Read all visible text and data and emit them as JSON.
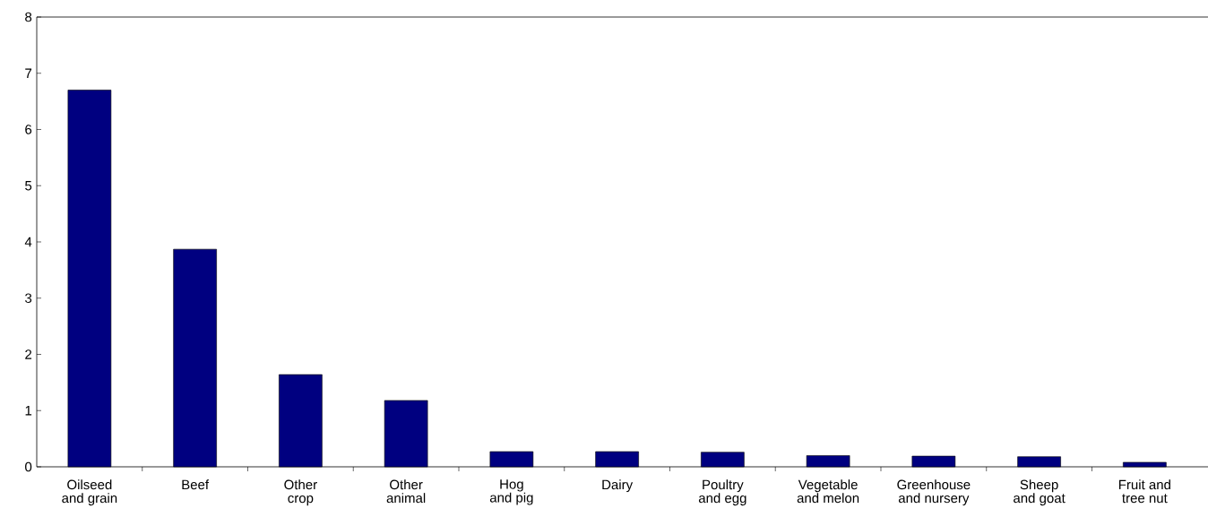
{
  "chart_data": {
    "type": "bar",
    "categories": [
      "Oilseed\nand grain",
      "Beef",
      "Other\ncrop",
      "Other\nanimal",
      "Hog\nand pig",
      "Dairy",
      "Poultry\nand egg",
      "Vegetable\nand melon",
      "Greenhouse\nand nursery",
      "Sheep\nand goat",
      "Fruit and\ntree nut"
    ],
    "values": [
      6.7,
      3.87,
      1.64,
      1.18,
      0.27,
      0.27,
      0.26,
      0.2,
      0.19,
      0.18,
      0.08
    ],
    "color": "#000080",
    "ylim": [
      0,
      8
    ],
    "yticks": [
      0,
      1,
      2,
      3,
      4,
      5,
      6,
      7,
      8
    ],
    "grid": false
  }
}
